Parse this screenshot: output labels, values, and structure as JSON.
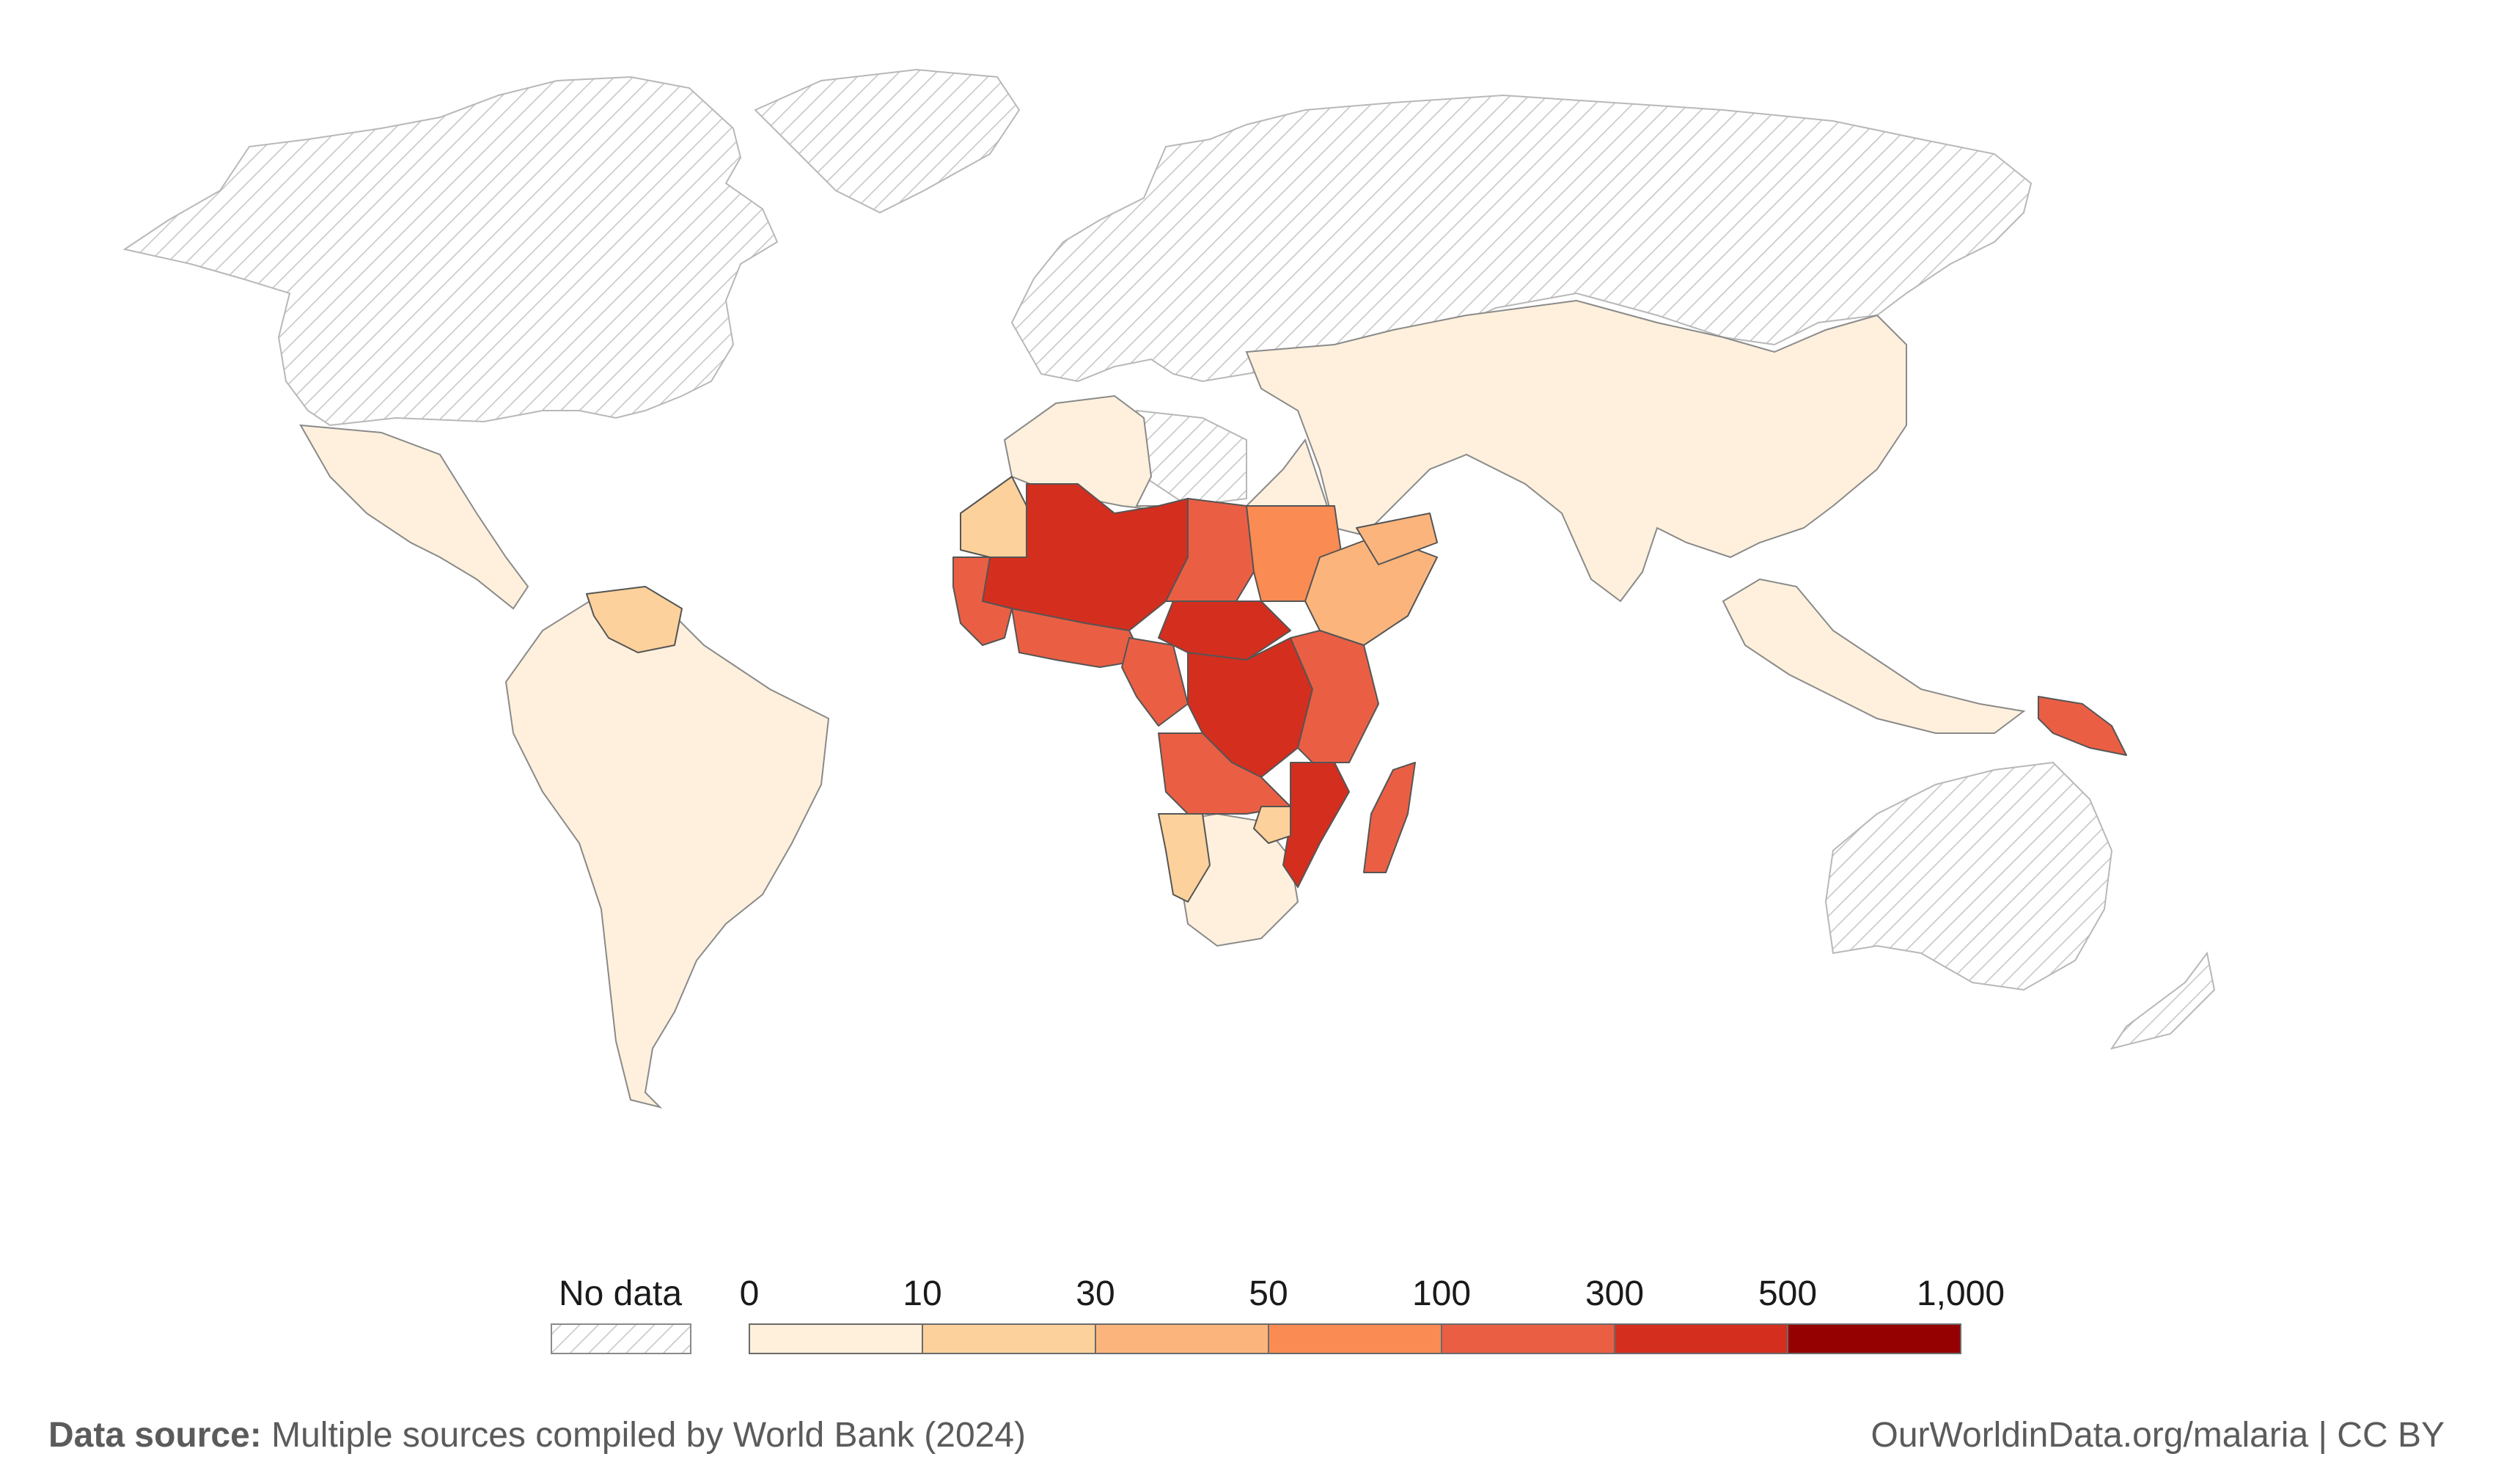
{
  "legend": {
    "no_data_label": "No data",
    "no_data_pattern": "hatched-gray",
    "bins": [
      {
        "label_left": "0",
        "label_right": "10",
        "color": "#fff0dc"
      },
      {
        "label_right": "30",
        "color": "#fdd19b"
      },
      {
        "label_right": "50",
        "color": "#fbb57c"
      },
      {
        "label_right": "100",
        "color": "#f98b53"
      },
      {
        "label_right": "300",
        "color": "#ea5f44"
      },
      {
        "label_right": "500",
        "color": "#d42e1f"
      },
      {
        "label_right": "1,000",
        "color": "#950000"
      }
    ]
  },
  "footer": {
    "source_label": "Data source:",
    "source_text": "Multiple sources compiled by World Bank (2024)",
    "credit": "OurWorldinData.org/malaria | CC BY"
  },
  "colors": {
    "no_data_stroke": "#b8b8b8",
    "border": "#555555",
    "background": "#ffffff"
  }
}
